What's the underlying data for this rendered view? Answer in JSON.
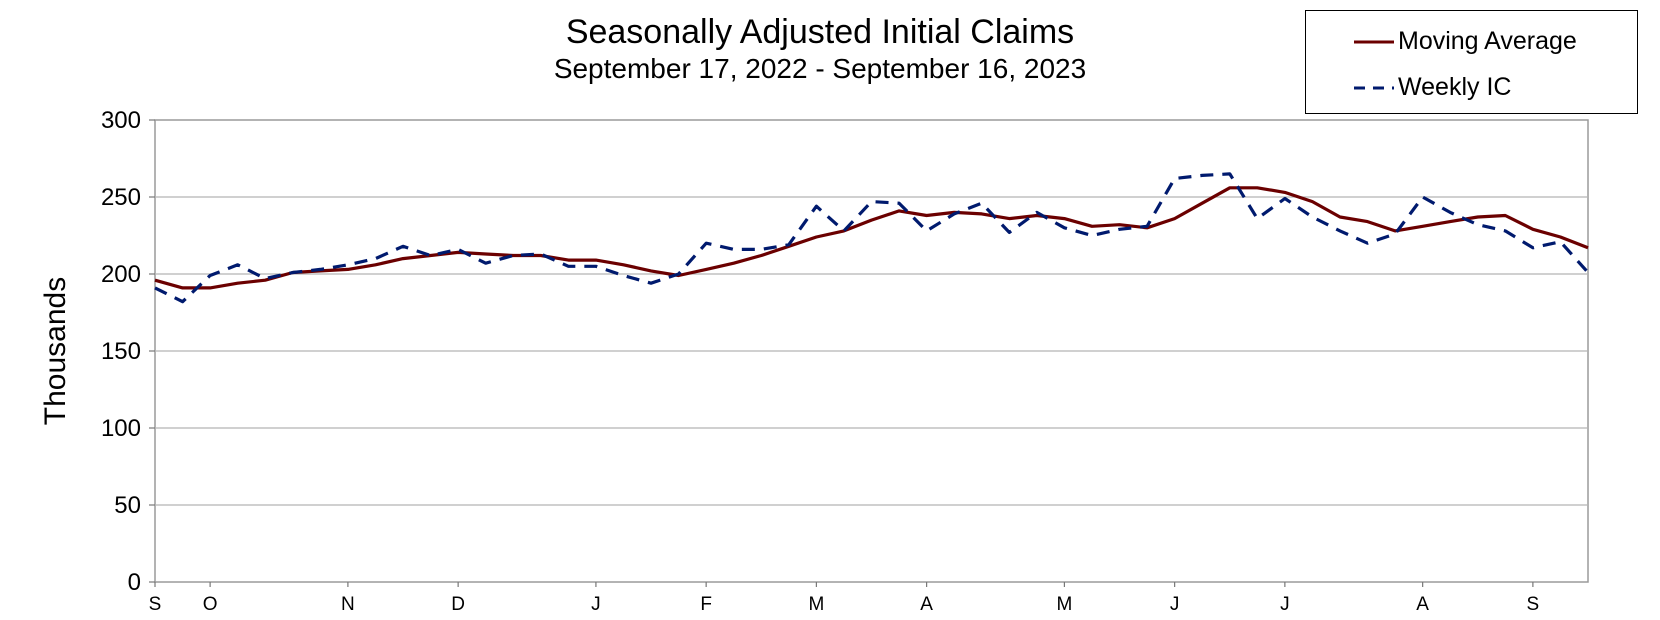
{
  "chart_data": {
    "type": "line",
    "title": "Seasonally Adjusted Initial Claims",
    "subtitle": "September 17, 2022 - September 16, 2023",
    "ylabel": "Thousands",
    "xlabel": "",
    "ylim": [
      0,
      300
    ],
    "yticks": [
      0,
      50,
      100,
      150,
      200,
      250,
      300
    ],
    "grid": true,
    "legend_position": "top-right",
    "x_tick_labels": [
      {
        "label": "S",
        "week": 0
      },
      {
        "label": "O",
        "week": 2
      },
      {
        "label": "N",
        "week": 7
      },
      {
        "label": "D",
        "week": 11
      },
      {
        "label": "J",
        "week": 16
      },
      {
        "label": "F",
        "week": 20
      },
      {
        "label": "M",
        "week": 24
      },
      {
        "label": "A",
        "week": 28
      },
      {
        "label": "M",
        "week": 33
      },
      {
        "label": "J",
        "week": 37
      },
      {
        "label": "J",
        "week": 41
      },
      {
        "label": "A",
        "week": 46
      },
      {
        "label": "S",
        "week": 50
      }
    ],
    "x": [
      "2022-09-17",
      "2022-09-24",
      "2022-10-01",
      "2022-10-08",
      "2022-10-15",
      "2022-10-22",
      "2022-10-29",
      "2022-11-05",
      "2022-11-12",
      "2022-11-19",
      "2022-11-26",
      "2022-12-03",
      "2022-12-10",
      "2022-12-17",
      "2022-12-24",
      "2022-12-31",
      "2023-01-07",
      "2023-01-14",
      "2023-01-21",
      "2023-01-28",
      "2023-02-04",
      "2023-02-11",
      "2023-02-18",
      "2023-02-25",
      "2023-03-04",
      "2023-03-11",
      "2023-03-18",
      "2023-03-25",
      "2023-04-01",
      "2023-04-08",
      "2023-04-15",
      "2023-04-22",
      "2023-04-29",
      "2023-05-06",
      "2023-05-13",
      "2023-05-20",
      "2023-05-27",
      "2023-06-03",
      "2023-06-10",
      "2023-06-17",
      "2023-06-24",
      "2023-07-01",
      "2023-07-08",
      "2023-07-15",
      "2023-07-22",
      "2023-07-29",
      "2023-08-05",
      "2023-08-12",
      "2023-08-19",
      "2023-08-26",
      "2023-09-02",
      "2023-09-09",
      "2023-09-16"
    ],
    "series": [
      {
        "name": "Moving Average",
        "color": "#6b0000",
        "style": "solid",
        "values": [
          196,
          191,
          191,
          194,
          196,
          201,
          202,
          203,
          206,
          210,
          212,
          214,
          213,
          212,
          212,
          209,
          209,
          206,
          202,
          199,
          203,
          207,
          212,
          218,
          224,
          228,
          235,
          241,
          238,
          240,
          239,
          236,
          238,
          236,
          231,
          232,
          230,
          236,
          246,
          256,
          256,
          253,
          247,
          237,
          234,
          228,
          231,
          234,
          237,
          238,
          229,
          224,
          217
        ]
      },
      {
        "name": "Weekly IC",
        "color": "#001a6e",
        "style": "dashed",
        "values": [
          191,
          182,
          199,
          206,
          197,
          201,
          203,
          206,
          210,
          218,
          212,
          216,
          207,
          212,
          213,
          205,
          205,
          199,
          194,
          200,
          220,
          216,
          216,
          219,
          244,
          228,
          247,
          246,
          228,
          239,
          246,
          227,
          240,
          230,
          225,
          229,
          231,
          262,
          264,
          265,
          236,
          249,
          237,
          228,
          220,
          226,
          250,
          240,
          232,
          228,
          217,
          221,
          201
        ]
      }
    ]
  }
}
